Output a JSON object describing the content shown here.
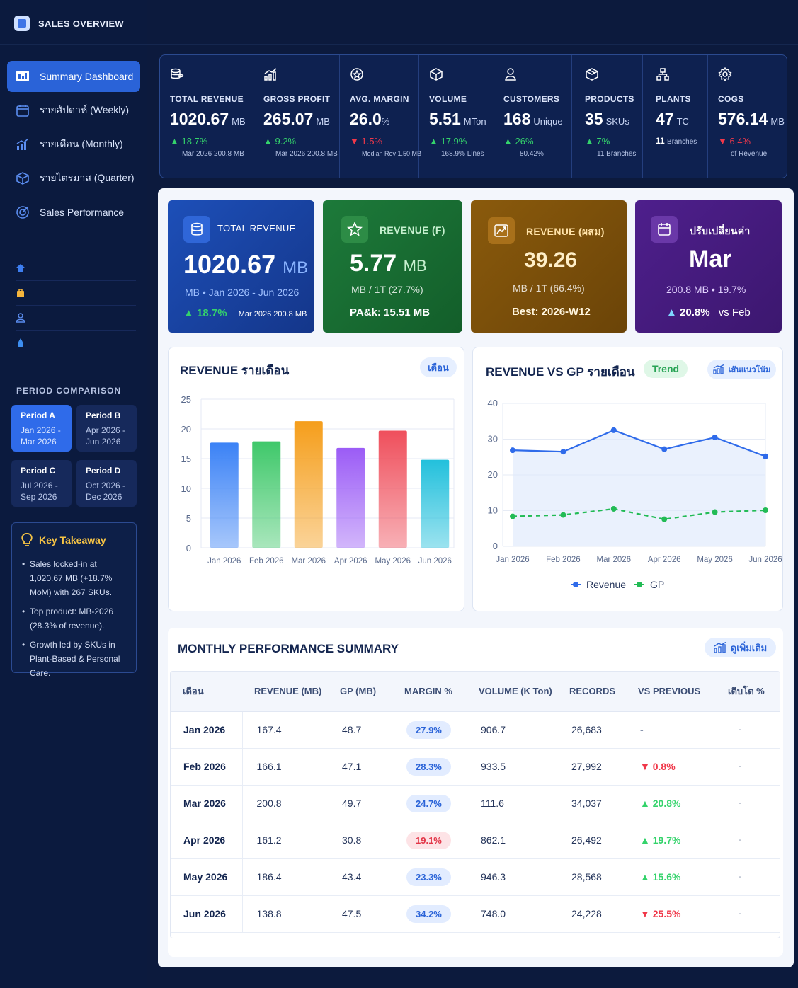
{
  "app": {
    "title": "SALES OVERVIEW"
  },
  "nav": [
    {
      "label": "Summary Dashboard",
      "icon": "dashboard-icon",
      "active": true
    },
    {
      "label": "รายสัปดาห์ (Weekly)",
      "icon": "calendar-icon"
    },
    {
      "label": "รายเดือน (Monthly)",
      "icon": "bar-chart-icon"
    },
    {
      "label": "รายไตรมาส (Quarter)",
      "icon": "cube-icon"
    },
    {
      "label": "Sales Performance",
      "icon": "target-icon"
    }
  ],
  "mini_icons": [
    "home-icon",
    "bag-icon",
    "user-icon",
    "drop-icon"
  ],
  "period_comparison": {
    "title": "PERIOD COMPARISON",
    "periods": [
      {
        "name": "Period A",
        "range": "Jan 2026 - Mar 2026",
        "active": true
      },
      {
        "name": "Period B",
        "range": "Apr 2026 - Jun 2026"
      },
      {
        "name": "Period C",
        "range": "Jul 2026 - Sep 2026"
      },
      {
        "name": "Period D",
        "range": "Oct 2026 - Dec 2026"
      }
    ]
  },
  "takeaway": {
    "title": "Key Takeaway",
    "items": [
      "Sales locked-in at 1,020.67 MB (+18.7% MoM) with 267 SKUs.",
      "Top product: MB-2026 (28.3% of revenue).",
      "Growth led by SKUs in Plant-Based & Personal Care."
    ]
  },
  "kpis": [
    {
      "label": "TOTAL REVENUE",
      "value": "1020.67",
      "unit": "MB",
      "change": "18.7%",
      "dir": "up",
      "sub": "Mar 2026 200.8 MB",
      "icon": "coins-icon"
    },
    {
      "label": "GROSS PROFIT",
      "value": "265.07",
      "unit": "MB",
      "change": "9.2%",
      "dir": "up",
      "sub": "Mar 2026 200.8 MB",
      "icon": "growth-chart-icon"
    },
    {
      "label": "AVG. MARGIN",
      "value": "26.0",
      "unit": "%",
      "change": "1.5%",
      "dir": "down",
      "sub": "Median Rev 1.50 MB",
      "icon": "badge-icon"
    },
    {
      "label": "VOLUME",
      "value": "5.51",
      "unit": "MTon",
      "change": "17.9%",
      "dir": "up",
      "sub": "168.9% Lines",
      "icon": "box-icon"
    },
    {
      "label": "CUSTOMERS",
      "value": "168",
      "unit": "Unique",
      "change": "26%",
      "dir": "up",
      "sub": "80.42%",
      "icon": "person-icon"
    },
    {
      "label": "PRODUCTS",
      "value": "35",
      "unit": "SKUs",
      "change": "7%",
      "dir": "up",
      "sub": "11 Branches",
      "icon": "package-icon"
    },
    {
      "label": "PLANTS",
      "value": "47",
      "unit": "TC",
      "change": "11",
      "dir": "none",
      "sub": "Branches",
      "icon": "network-icon"
    },
    {
      "label": "COGS",
      "value": "576.14",
      "unit": "MB",
      "change": "6.4%",
      "dir": "down",
      "sub": "of Revenue",
      "icon": "gear-icon"
    }
  ],
  "heroes": [
    {
      "title": "TOTAL REVENUE",
      "value": "1020.67",
      "unit": "MB",
      "sub": "MB • Jan 2026 - Jun 2026",
      "foot_change": "18.7%",
      "foot_text": "Mar 2026 200.8 MB",
      "icon": "database-icon"
    },
    {
      "title": "REVENUE (F)",
      "value": "5.77",
      "unit": "MB",
      "sub": "MB / 1T  (27.7%)",
      "foot": "PA&k: 15.51 MB",
      "icon": "star-icon"
    },
    {
      "title": "REVENUE (ผสม)",
      "value": "39.26",
      "sub": "MB / 1T  (66.4%)",
      "foot": "Best: 2026-W12",
      "icon": "trend-up-icon"
    },
    {
      "title": "ปรับเปลี่ยนค่า",
      "value": "Mar",
      "sub": "200.8 MB  •  19.7%",
      "foot_change": "20.8%",
      "foot_text": "vs Feb",
      "icon": "calendar-icon"
    }
  ],
  "revenue_chart": {
    "title": "REVENUE รายเดือน",
    "pill": "เดือน"
  },
  "rev_gp_chart": {
    "title": "REVENUE VS GP รายเดือน",
    "trend": "Trend",
    "pill": "เส้นแนวโน้ม"
  },
  "chart_data": [
    {
      "type": "bar",
      "title": "REVENUE รายเดือน",
      "categories": [
        "Jan 2026",
        "Feb 2026",
        "Mar 2026",
        "Apr 2026",
        "May 2026",
        "Jun 2026"
      ],
      "values": [
        17.7,
        17.9,
        21.3,
        16.8,
        19.7,
        14.8
      ],
      "colors": [
        "#3b82f6",
        "#3fc86a",
        "#f59e1b",
        "#9b5cf6",
        "#ef4f5c",
        "#22c0dc"
      ],
      "ylim": [
        0,
        25
      ],
      "yticks": [
        0,
        5,
        10,
        15,
        20,
        25
      ],
      "grid": true
    },
    {
      "type": "line",
      "title": "REVENUE VS GP รายเดือน",
      "categories": [
        "Jan 2026",
        "Feb 2026",
        "Mar 2026",
        "Apr 2026",
        "May 2026",
        "Jun 2026"
      ],
      "series": [
        {
          "name": "Revenue",
          "values": [
            26.9,
            26.5,
            32.5,
            27.2,
            30.5,
            25.2
          ],
          "color": "#2f6bea"
        },
        {
          "name": "GP",
          "values": [
            8.4,
            8.8,
            10.5,
            7.6,
            9.6,
            10.1
          ],
          "color": "#22bb55"
        }
      ],
      "ylim": [
        0,
        40
      ],
      "yticks": [
        0,
        10,
        20,
        30,
        40
      ],
      "legend": "bottom",
      "grid": true
    }
  ],
  "summary": {
    "title": "MONTHLY PERFORMANCE SUMMARY",
    "pill": "ดูเพิ่มเติม",
    "columns": [
      "เดือน",
      "REVENUE (MB)",
      "GP (MB)",
      "MARGIN %",
      "VOLUME (K Ton)",
      "RECORDS",
      "VS PREVIOUS",
      "เติบโต %"
    ],
    "rows": [
      {
        "month": "Jan 2026",
        "revenue": "167.4",
        "gp": "48.7",
        "margin": "27.9%",
        "volume": "906.7",
        "records": "26,683",
        "vs": "-",
        "vs_dir": "none",
        "growth": "-"
      },
      {
        "month": "Feb 2026",
        "revenue": "166.1",
        "gp": "47.1",
        "margin": "28.3%",
        "volume": "933.5",
        "records": "27,992",
        "vs": "0.8%",
        "vs_dir": "down",
        "growth": "-"
      },
      {
        "month": "Mar 2026",
        "revenue": "200.8",
        "gp": "49.7",
        "margin": "24.7%",
        "volume": "111.6",
        "records": "34,037",
        "vs": "20.8%",
        "vs_dir": "up",
        "growth": "-"
      },
      {
        "month": "Apr 2026",
        "revenue": "161.2",
        "gp": "30.8",
        "margin": "19.1%",
        "margin_low": true,
        "volume": "862.1",
        "records": "26,492",
        "vs": "19.7%",
        "vs_dir": "up",
        "growth": "-"
      },
      {
        "month": "May 2026",
        "revenue": "186.4",
        "gp": "43.4",
        "margin": "23.3%",
        "volume": "946.3",
        "records": "28,568",
        "vs": "15.6%",
        "vs_dir": "up",
        "growth": "-"
      },
      {
        "month": "Jun 2026",
        "revenue": "138.8",
        "gp": "47.5",
        "margin": "34.2%",
        "volume": "748.0",
        "records": "24,228",
        "vs": "25.5%",
        "vs_dir": "down",
        "growth": "-"
      }
    ]
  }
}
